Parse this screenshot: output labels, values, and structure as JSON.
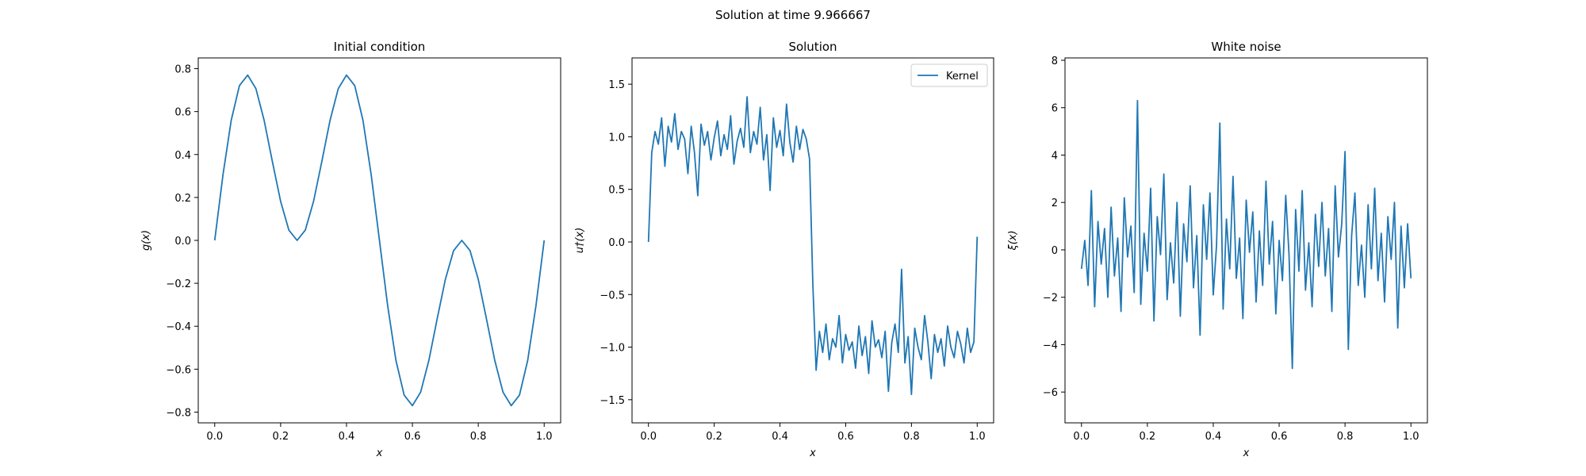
{
  "title": "Solution at time 9.966667",
  "chart_data": [
    {
      "type": "line",
      "title": "Initial condition",
      "x_label": "x",
      "y_label": "g(x)",
      "color": "#1f77b4",
      "x": [
        0,
        0.025,
        0.05,
        0.075,
        0.1,
        0.125,
        0.15,
        0.175,
        0.2,
        0.225,
        0.25,
        0.275,
        0.3,
        0.325,
        0.35,
        0.375,
        0.4,
        0.425,
        0.45,
        0.475,
        0.5,
        0.525,
        0.55,
        0.575,
        0.6,
        0.625,
        0.65,
        0.675,
        0.7,
        0.725,
        0.75,
        0.775,
        0.8,
        0.825,
        0.85,
        0.875,
        0.9,
        0.925,
        0.95,
        0.975,
        1
      ],
      "values": [
        0,
        0.305,
        0.559,
        0.721,
        0.77,
        0.707,
        0.559,
        0.367,
        0.182,
        0.048,
        0,
        0.048,
        0.182,
        0.367,
        0.559,
        0.707,
        0.77,
        0.721,
        0.559,
        0.305,
        0,
        -0.305,
        -0.559,
        -0.721,
        -0.77,
        -0.707,
        -0.559,
        -0.367,
        -0.182,
        -0.048,
        0,
        -0.048,
        -0.182,
        -0.367,
        -0.559,
        -0.707,
        -0.77,
        -0.721,
        -0.559,
        -0.305,
        0
      ],
      "xlim": [
        -0.05,
        1.05
      ],
      "ylim": [
        -0.85,
        0.85
      ],
      "xticks": [
        {
          "value": 0,
          "label": "0.0"
        },
        0.2,
        0.4,
        0.6,
        0.8,
        {
          "value": 1,
          "label": "1.0"
        }
      ],
      "yticks": [
        {
          "value": -0.8,
          "label": "−0.8"
        },
        {
          "value": -0.6,
          "label": "−0.6"
        },
        {
          "value": -0.4,
          "label": "−0.4"
        },
        {
          "value": -0.2,
          "label": "−0.2"
        },
        {
          "value": 0,
          "label": "0.0"
        },
        0.2,
        0.4,
        0.6,
        0.8
      ]
    },
    {
      "type": "line",
      "title": "Solution",
      "x_label": "x",
      "y_label": "u†(x)",
      "legend": "upper right",
      "x": [
        0,
        0.01,
        0.02,
        0.03,
        0.04,
        0.05,
        0.06,
        0.07,
        0.08,
        0.09,
        0.1,
        0.11,
        0.12,
        0.13,
        0.14,
        0.15,
        0.16,
        0.17,
        0.18,
        0.19,
        0.2,
        0.21,
        0.22,
        0.23,
        0.24,
        0.25,
        0.26,
        0.27,
        0.28,
        0.29,
        0.3,
        0.31,
        0.32,
        0.33,
        0.34,
        0.35,
        0.36,
        0.37,
        0.38,
        0.39,
        0.4,
        0.41,
        0.42,
        0.43,
        0.44,
        0.45,
        0.46,
        0.47,
        0.48,
        0.49,
        0.5,
        0.51,
        0.52,
        0.53,
        0.54,
        0.55,
        0.56,
        0.57,
        0.58,
        0.59,
        0.6,
        0.61,
        0.62,
        0.63,
        0.64,
        0.65,
        0.66,
        0.67,
        0.68,
        0.69,
        0.7,
        0.71,
        0.72,
        0.73,
        0.74,
        0.75,
        0.76,
        0.77,
        0.78,
        0.79,
        0.8,
        0.81,
        0.82,
        0.83,
        0.84,
        0.85,
        0.86,
        0.87,
        0.88,
        0.89,
        0.9,
        0.91,
        0.92,
        0.93,
        0.94,
        0.95,
        0.96,
        0.97,
        0.98,
        0.99,
        1
      ],
      "series": [
        {
          "name": "Kernel",
          "color": "#1f77b4",
          "values": [
            0,
            0.85,
            1.05,
            0.93,
            1.18,
            0.72,
            1.1,
            0.95,
            1.22,
            0.88,
            1.05,
            0.98,
            0.65,
            1.1,
            0.85,
            0.44,
            1.12,
            0.92,
            1.05,
            0.78,
            0.99,
            1.15,
            0.82,
            1.02,
            0.88,
            1.2,
            0.74,
            0.96,
            1.08,
            0.9,
            1.38,
            0.85,
            1.05,
            0.93,
            1.28,
            0.78,
            1.02,
            0.49,
            1.18,
            0.9,
            1.06,
            0.82,
            1.31,
            0.95,
            0.76,
            1.1,
            0.88,
            1.07,
            0.98,
            0.79,
            -0.4,
            -1.22,
            -0.85,
            -1.05,
            -0.78,
            -1.12,
            -0.92,
            -1.0,
            -0.7,
            -1.15,
            -0.88,
            -1.03,
            -0.95,
            -1.2,
            -0.8,
            -1.08,
            -0.9,
            -1.25,
            -0.75,
            -1.0,
            -0.93,
            -1.1,
            -0.85,
            -1.42,
            -0.96,
            -0.78,
            -1.05,
            -0.26,
            -1.15,
            -0.9,
            -1.45,
            -0.82,
            -1.0,
            -1.12,
            -0.7,
            -0.95,
            -1.3,
            -0.88,
            -1.05,
            -0.92,
            -1.18,
            -0.8,
            -1.0,
            -1.1,
            -0.85,
            -0.97,
            -1.15,
            -0.82,
            -1.05,
            -0.95,
            0.05
          ]
        }
      ],
      "xlim": [
        -0.05,
        1.05
      ],
      "ylim": [
        -1.72,
        1.75
      ],
      "xticks": [
        {
          "value": 0,
          "label": "0.0"
        },
        0.2,
        0.4,
        0.6,
        0.8,
        {
          "value": 1,
          "label": "1.0"
        }
      ],
      "yticks": [
        {
          "value": -1.5,
          "label": "−1.5"
        },
        {
          "value": -1,
          "label": "−1.0"
        },
        {
          "value": -0.5,
          "label": "−0.5"
        },
        {
          "value": 0,
          "label": "0.0"
        },
        0.5,
        {
          "value": 1,
          "label": "1.0"
        },
        1.5
      ]
    },
    {
      "type": "line",
      "title": "White noise",
      "x_label": "x",
      "y_label": "ξ(x)",
      "color": "#1f77b4",
      "x": [
        0,
        0.01,
        0.02,
        0.03,
        0.04,
        0.05,
        0.06,
        0.07,
        0.08,
        0.09,
        0.1,
        0.11,
        0.12,
        0.13,
        0.14,
        0.15,
        0.16,
        0.17,
        0.18,
        0.19,
        0.2,
        0.21,
        0.22,
        0.23,
        0.24,
        0.25,
        0.26,
        0.27,
        0.28,
        0.29,
        0.3,
        0.31,
        0.32,
        0.33,
        0.34,
        0.35,
        0.36,
        0.37,
        0.38,
        0.39,
        0.4,
        0.41,
        0.42,
        0.43,
        0.44,
        0.45,
        0.46,
        0.47,
        0.48,
        0.49,
        0.5,
        0.51,
        0.52,
        0.53,
        0.54,
        0.55,
        0.56,
        0.57,
        0.58,
        0.59,
        0.6,
        0.61,
        0.62,
        0.63,
        0.64,
        0.65,
        0.66,
        0.67,
        0.68,
        0.69,
        0.7,
        0.71,
        0.72,
        0.73,
        0.74,
        0.75,
        0.76,
        0.77,
        0.78,
        0.79,
        0.8,
        0.81,
        0.82,
        0.83,
        0.84,
        0.85,
        0.86,
        0.87,
        0.88,
        0.89,
        0.9,
        0.91,
        0.92,
        0.93,
        0.94,
        0.95,
        0.96,
        0.97,
        0.98,
        0.99,
        1
      ],
      "values": [
        -0.8,
        0.4,
        -1.5,
        2.5,
        -2.4,
        1.2,
        -0.6,
        0.9,
        -2.0,
        1.8,
        -1.1,
        0.5,
        -2.6,
        2.2,
        -0.3,
        1.0,
        -1.8,
        6.3,
        -2.3,
        0.7,
        -0.9,
        2.6,
        -3.0,
        1.4,
        -0.2,
        3.2,
        -2.1,
        0.3,
        -1.4,
        2.0,
        -2.8,
        1.1,
        -0.5,
        2.7,
        -1.6,
        0.6,
        -3.6,
        1.9,
        -0.4,
        2.4,
        -1.9,
        0.2,
        5.35,
        -2.5,
        1.3,
        -0.8,
        3.1,
        -1.2,
        0.5,
        -2.9,
        2.1,
        -0.1,
        1.6,
        -2.2,
        0.8,
        -1.5,
        2.9,
        -0.6,
        1.2,
        -2.7,
        0.4,
        -1.3,
        2.3,
        -0.2,
        -5.0,
        1.7,
        -0.9,
        2.5,
        -1.7,
        0.3,
        -2.4,
        1.5,
        -0.7,
        2.0,
        -1.1,
        0.9,
        -2.6,
        2.7,
        -0.3,
        1.1,
        4.15,
        -4.2,
        0.6,
        2.4,
        -1.5,
        0.2,
        -2.0,
        1.9,
        -0.8,
        2.6,
        -1.3,
        0.7,
        -2.2,
        1.4,
        -0.4,
        2.0,
        -3.3,
        1.0,
        -1.6,
        1.1,
        -1.2
      ],
      "xlim": [
        -0.05,
        1.05
      ],
      "ylim": [
        -7.3,
        8.1
      ],
      "xticks": [
        {
          "value": 0,
          "label": "0.0"
        },
        0.2,
        0.4,
        0.6,
        0.8,
        {
          "value": 1,
          "label": "1.0"
        }
      ],
      "yticks": [
        {
          "value": -6,
          "label": "−6"
        },
        {
          "value": -4,
          "label": "−4"
        },
        {
          "value": -2,
          "label": "−2"
        },
        0,
        2,
        4,
        6,
        8
      ]
    }
  ]
}
